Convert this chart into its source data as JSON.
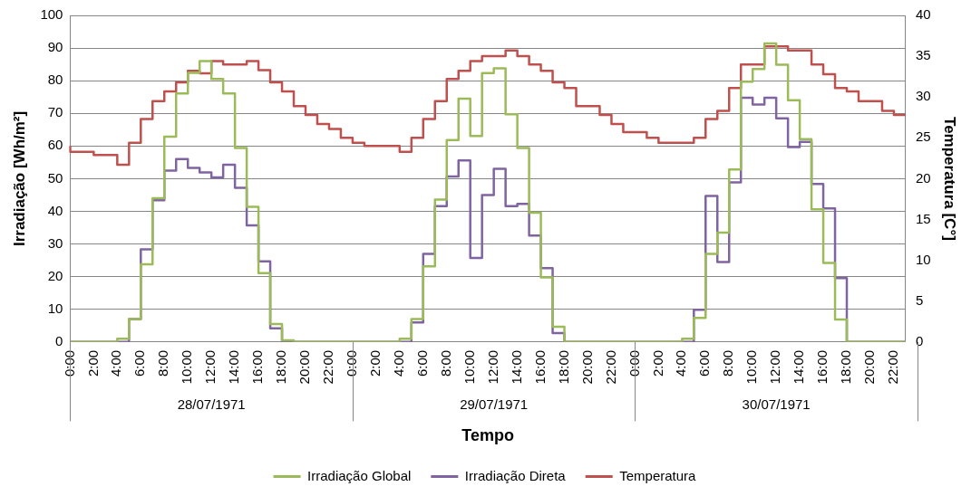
{
  "chart_data": {
    "type": "step",
    "xlabel": "Tempo",
    "ylabel": "Irradiação [Wh/m²]",
    "y2label": "Temperatura [C°]",
    "categories": [
      "0:00",
      null,
      "2:00",
      null,
      "4:00",
      null,
      "6:00",
      null,
      "8:00",
      null,
      "10:00",
      null,
      "12:00",
      null,
      "14:00",
      null,
      "16:00",
      null,
      "18:00",
      null,
      "20:00",
      null,
      "22:00",
      null,
      "0:00",
      null,
      "2:00",
      null,
      "4:00",
      null,
      "6:00",
      null,
      "8:00",
      null,
      "10:00",
      null,
      "12:00",
      null,
      "14:00",
      null,
      "16:00",
      null,
      "18:00",
      null,
      "20:00",
      null,
      "22:00",
      null,
      "0:00",
      null,
      "2:00",
      null,
      "4:00",
      null,
      "6:00",
      null,
      "8:00",
      null,
      "10:00",
      null,
      "12:00",
      null,
      "14:00",
      null,
      "16:00",
      null,
      "18:00",
      null,
      "20:00",
      null,
      "22:00",
      null
    ],
    "annotations": [
      "28/07/1971",
      "29/07/1971",
      "30/07/1971"
    ],
    "series": [
      {
        "name": "Irradiação Global",
        "color": "#9bbb59",
        "values": [
          0,
          0,
          0,
          0,
          0,
          1,
          7,
          23.8,
          44,
          62.9,
          76.1,
          82.4,
          86,
          80.5,
          76.1,
          59.4,
          41.4,
          21.1,
          5.5,
          0.5,
          0,
          0,
          0,
          0,
          0,
          0,
          0,
          0,
          0,
          1,
          7,
          23.2,
          43.6,
          61.8,
          74.5,
          63.1,
          82.3,
          83.8,
          69.7,
          59.4,
          39.6,
          19.8,
          4.7,
          0,
          0,
          0,
          0,
          0,
          0,
          0,
          0,
          0,
          0,
          1,
          7.4,
          27,
          33.5,
          52.8,
          79.7,
          83.6,
          91.4,
          84.9,
          74,
          62.1,
          40.6,
          24.2,
          6.9,
          0,
          0,
          0,
          0,
          0
        ]
      },
      {
        "name": "Irradiação Direta",
        "color": "#8064a2",
        "values": [
          0,
          0,
          0,
          0,
          0,
          0,
          7,
          28.4,
          43.4,
          52.5,
          56,
          53.3,
          51.9,
          50.4,
          54.3,
          47.2,
          35.7,
          24.7,
          4.2,
          0,
          0,
          0,
          0,
          0,
          0,
          0,
          0,
          0,
          0,
          0,
          6,
          27,
          41.6,
          50.7,
          55.6,
          25.7,
          45,
          53,
          41.6,
          42.3,
          32.6,
          22.6,
          2.7,
          0,
          0,
          0,
          0,
          0,
          0,
          0,
          0,
          0,
          0,
          0,
          9.9,
          44.7,
          24.5,
          48.9,
          74.8,
          72.7,
          74.8,
          68.5,
          59.7,
          61.3,
          48.4,
          40.9,
          19.6,
          0,
          0,
          0,
          0,
          0
        ]
      },
      {
        "name": "Temperatura",
        "color": "#c0504d",
        "axis": "y2",
        "values": [
          24,
          23.3,
          23.3,
          22.9,
          22.9,
          21.7,
          24.4,
          27.3,
          29.5,
          30.7,
          31.8,
          33.2,
          32.9,
          34.4,
          34,
          34,
          34.4,
          33.3,
          31.8,
          30.7,
          28.9,
          27.8,
          26.7,
          26.1,
          25,
          24.4,
          24,
          24,
          24,
          23.3,
          25,
          27.3,
          29.5,
          32.2,
          33.2,
          34.4,
          35,
          35,
          35.7,
          35,
          34,
          33.2,
          31.8,
          31.1,
          28.9,
          28.9,
          27.8,
          26.7,
          25.7,
          25.7,
          25,
          24.4,
          24.4,
          24.4,
          25,
          27.3,
          28.3,
          31.1,
          34,
          34,
          36.2,
          36.2,
          35.7,
          35.7,
          34,
          32.8,
          31.1,
          30.7,
          29.5,
          29.5,
          28.3,
          27.8
        ]
      }
    ],
    "ylim": [
      0,
      100
    ],
    "yticks": [
      0,
      10,
      20,
      30,
      40,
      50,
      60,
      70,
      80,
      90,
      100
    ],
    "y2lim": [
      0,
      40
    ],
    "y2ticks": [
      0,
      5,
      10,
      15,
      20,
      25,
      30,
      35,
      40
    ],
    "grid": "y",
    "legend": "bottom",
    "marker": "none",
    "line_style": "solid"
  }
}
